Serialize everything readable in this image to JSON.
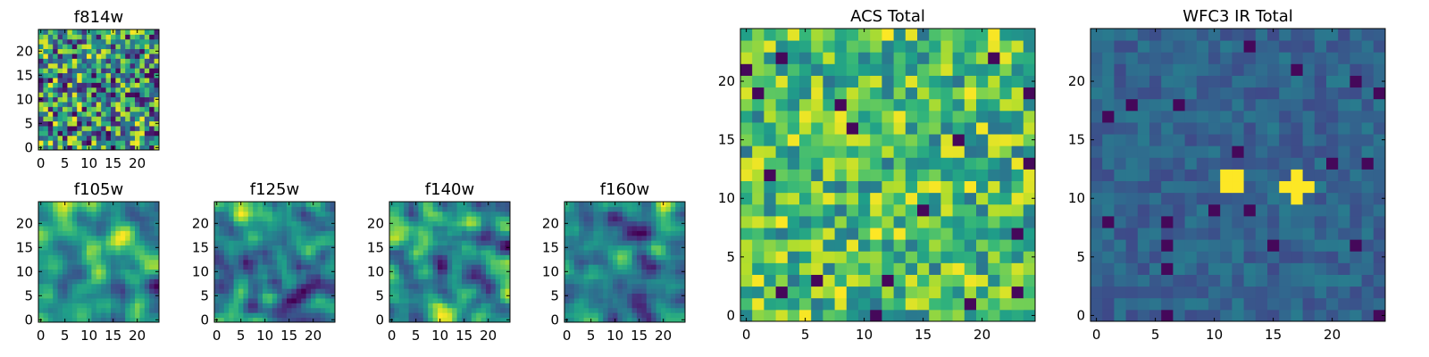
{
  "chart_data": [
    {
      "type": "heatmap",
      "title": "f814w",
      "colormap": "viridis",
      "noise": "white",
      "range": [
        0,
        1
      ],
      "hotspots": [],
      "xticks": [
        "0",
        "5",
        "10",
        "15",
        "20"
      ],
      "yticks": [
        "0",
        "5",
        "10",
        "15",
        "20"
      ],
      "xlim": [
        -0.5,
        24.5
      ],
      "ylim": [
        -0.5,
        24.5
      ]
    },
    {
      "type": "heatmap",
      "title": "f105w",
      "colormap": "viridis",
      "noise": "smooth",
      "range": [
        0,
        1
      ],
      "hotspots": [],
      "xticks": [
        "0",
        "5",
        "10",
        "15",
        "20"
      ],
      "yticks": [
        "0",
        "5",
        "10",
        "15",
        "20"
      ],
      "xlim": [
        -0.5,
        24.5
      ],
      "ylim": [
        -0.5,
        24.5
      ]
    },
    {
      "type": "heatmap",
      "title": "f125w",
      "colormap": "viridis",
      "noise": "smooth",
      "range": [
        0,
        1
      ],
      "hotspots": [],
      "xticks": [
        "0",
        "5",
        "10",
        "15",
        "20"
      ],
      "yticks": [
        "0",
        "5",
        "10",
        "15",
        "20"
      ],
      "xlim": [
        -0.5,
        24.5
      ],
      "ylim": [
        -0.5,
        24.5
      ]
    },
    {
      "type": "heatmap",
      "title": "f140w",
      "colormap": "viridis",
      "noise": "smooth",
      "range": [
        0,
        1
      ],
      "hotspots": [],
      "xticks": [
        "0",
        "5",
        "10",
        "15",
        "20"
      ],
      "yticks": [
        "0",
        "5",
        "10",
        "15",
        "20"
      ],
      "xlim": [
        -0.5,
        24.5
      ],
      "ylim": [
        -0.5,
        24.5
      ]
    },
    {
      "type": "heatmap",
      "title": "f160w",
      "colormap": "viridis",
      "noise": "smooth",
      "range": [
        0,
        1
      ],
      "hotspots": [],
      "xticks": [
        "0",
        "5",
        "10",
        "15",
        "20"
      ],
      "yticks": [
        "0",
        "5",
        "10",
        "15",
        "20"
      ],
      "xlim": [
        -0.5,
        24.5
      ],
      "ylim": [
        -0.5,
        24.5
      ]
    },
    {
      "type": "heatmap",
      "title": "ACS Total",
      "colormap": "viridis",
      "noise": "white",
      "range": [
        0.38,
        1
      ],
      "hotspots": [],
      "xticks": [
        "0",
        "5",
        "10",
        "15",
        "20"
      ],
      "yticks": [
        "0",
        "5",
        "10",
        "15",
        "20"
      ],
      "xlim": [
        -0.5,
        24.5
      ],
      "ylim": [
        -0.5,
        24.5
      ]
    },
    {
      "type": "heatmap",
      "title": "WFC3 IR Total",
      "colormap": "viridis",
      "noise": "white",
      "range": [
        0.22,
        0.42
      ],
      "hotspots": [
        [
          11,
          12
        ],
        [
          12,
          12
        ],
        [
          11,
          11
        ],
        [
          12,
          11
        ],
        [
          17,
          12
        ],
        [
          16,
          11
        ],
        [
          17,
          11
        ],
        [
          18,
          11
        ],
        [
          17,
          10
        ]
      ],
      "xticks": [
        "0",
        "5",
        "10",
        "15",
        "20"
      ],
      "yticks": [
        "0",
        "5",
        "10",
        "15",
        "20"
      ],
      "xlim": [
        -0.5,
        24.5
      ],
      "ylim": [
        -0.5,
        24.5
      ]
    }
  ]
}
